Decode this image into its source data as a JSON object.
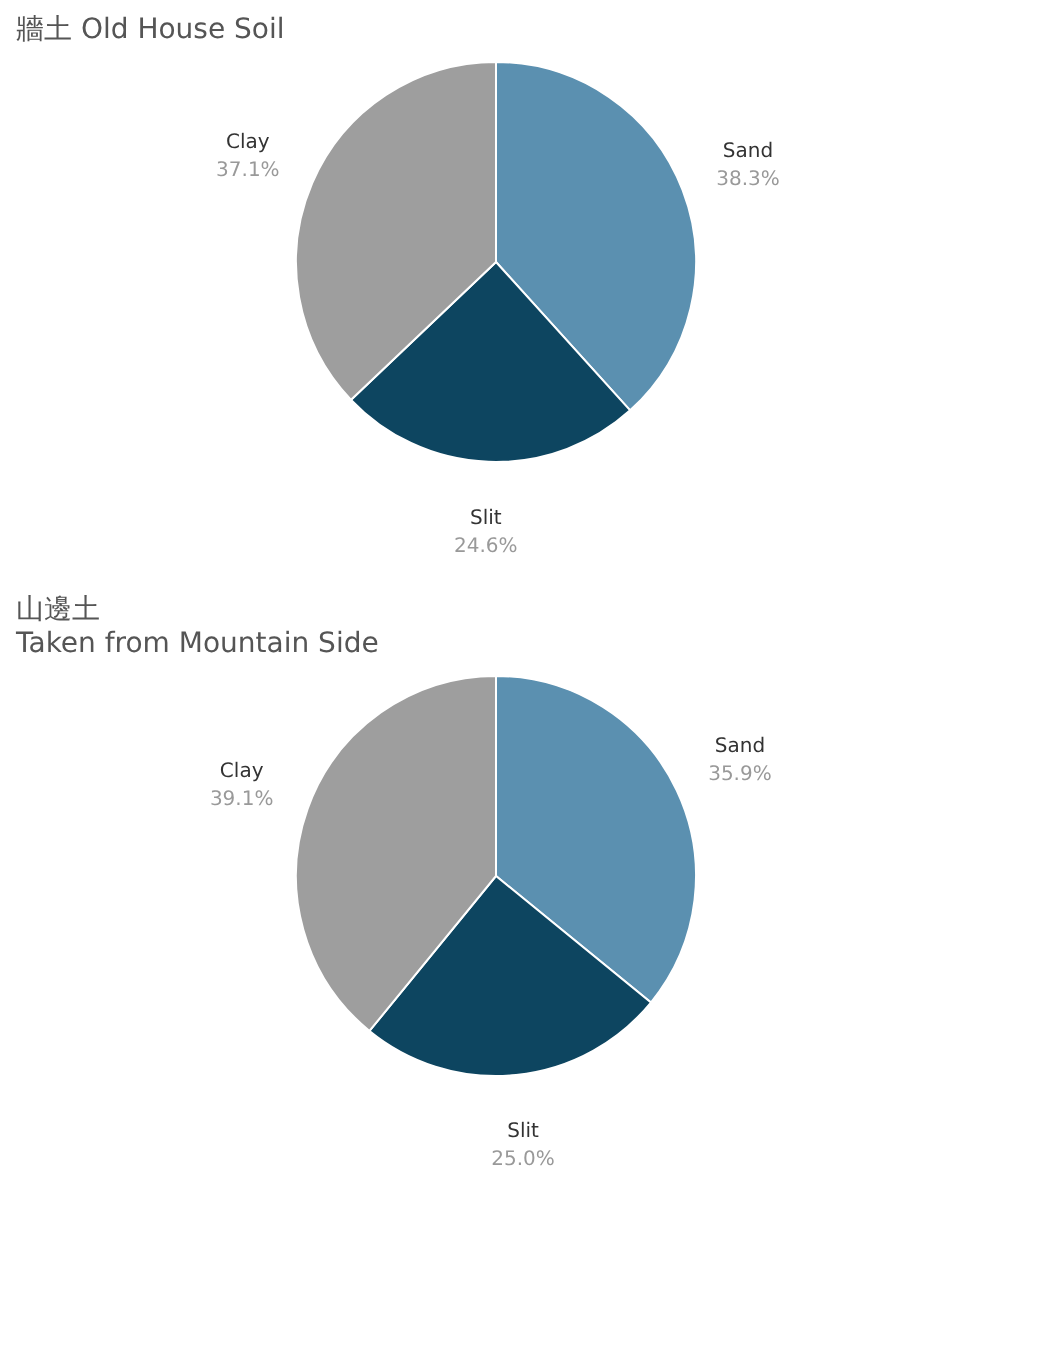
{
  "chart_data": [
    {
      "type": "pie",
      "title": "牆土 Old House Soil",
      "categories": [
        "Sand",
        "Slit",
        "Clay"
      ],
      "values": [
        38.3,
        24.6,
        37.1
      ],
      "colors": [
        "#5b90b0",
        "#0d4560",
        "#9e9e9e"
      ],
      "value_labels": [
        "38.3%",
        "24.6%",
        "37.1%"
      ],
      "legend": false
    },
    {
      "type": "pie",
      "title": "山邊土",
      "subtitle": "Taken from Mountain Side",
      "categories": [
        "Sand",
        "Slit",
        "Clay"
      ],
      "values": [
        35.9,
        25.0,
        39.1
      ],
      "colors": [
        "#5b90b0",
        "#0d4560",
        "#9e9e9e"
      ],
      "value_labels": [
        "35.9%",
        "25.0%",
        "39.1%"
      ],
      "legend": false
    }
  ]
}
